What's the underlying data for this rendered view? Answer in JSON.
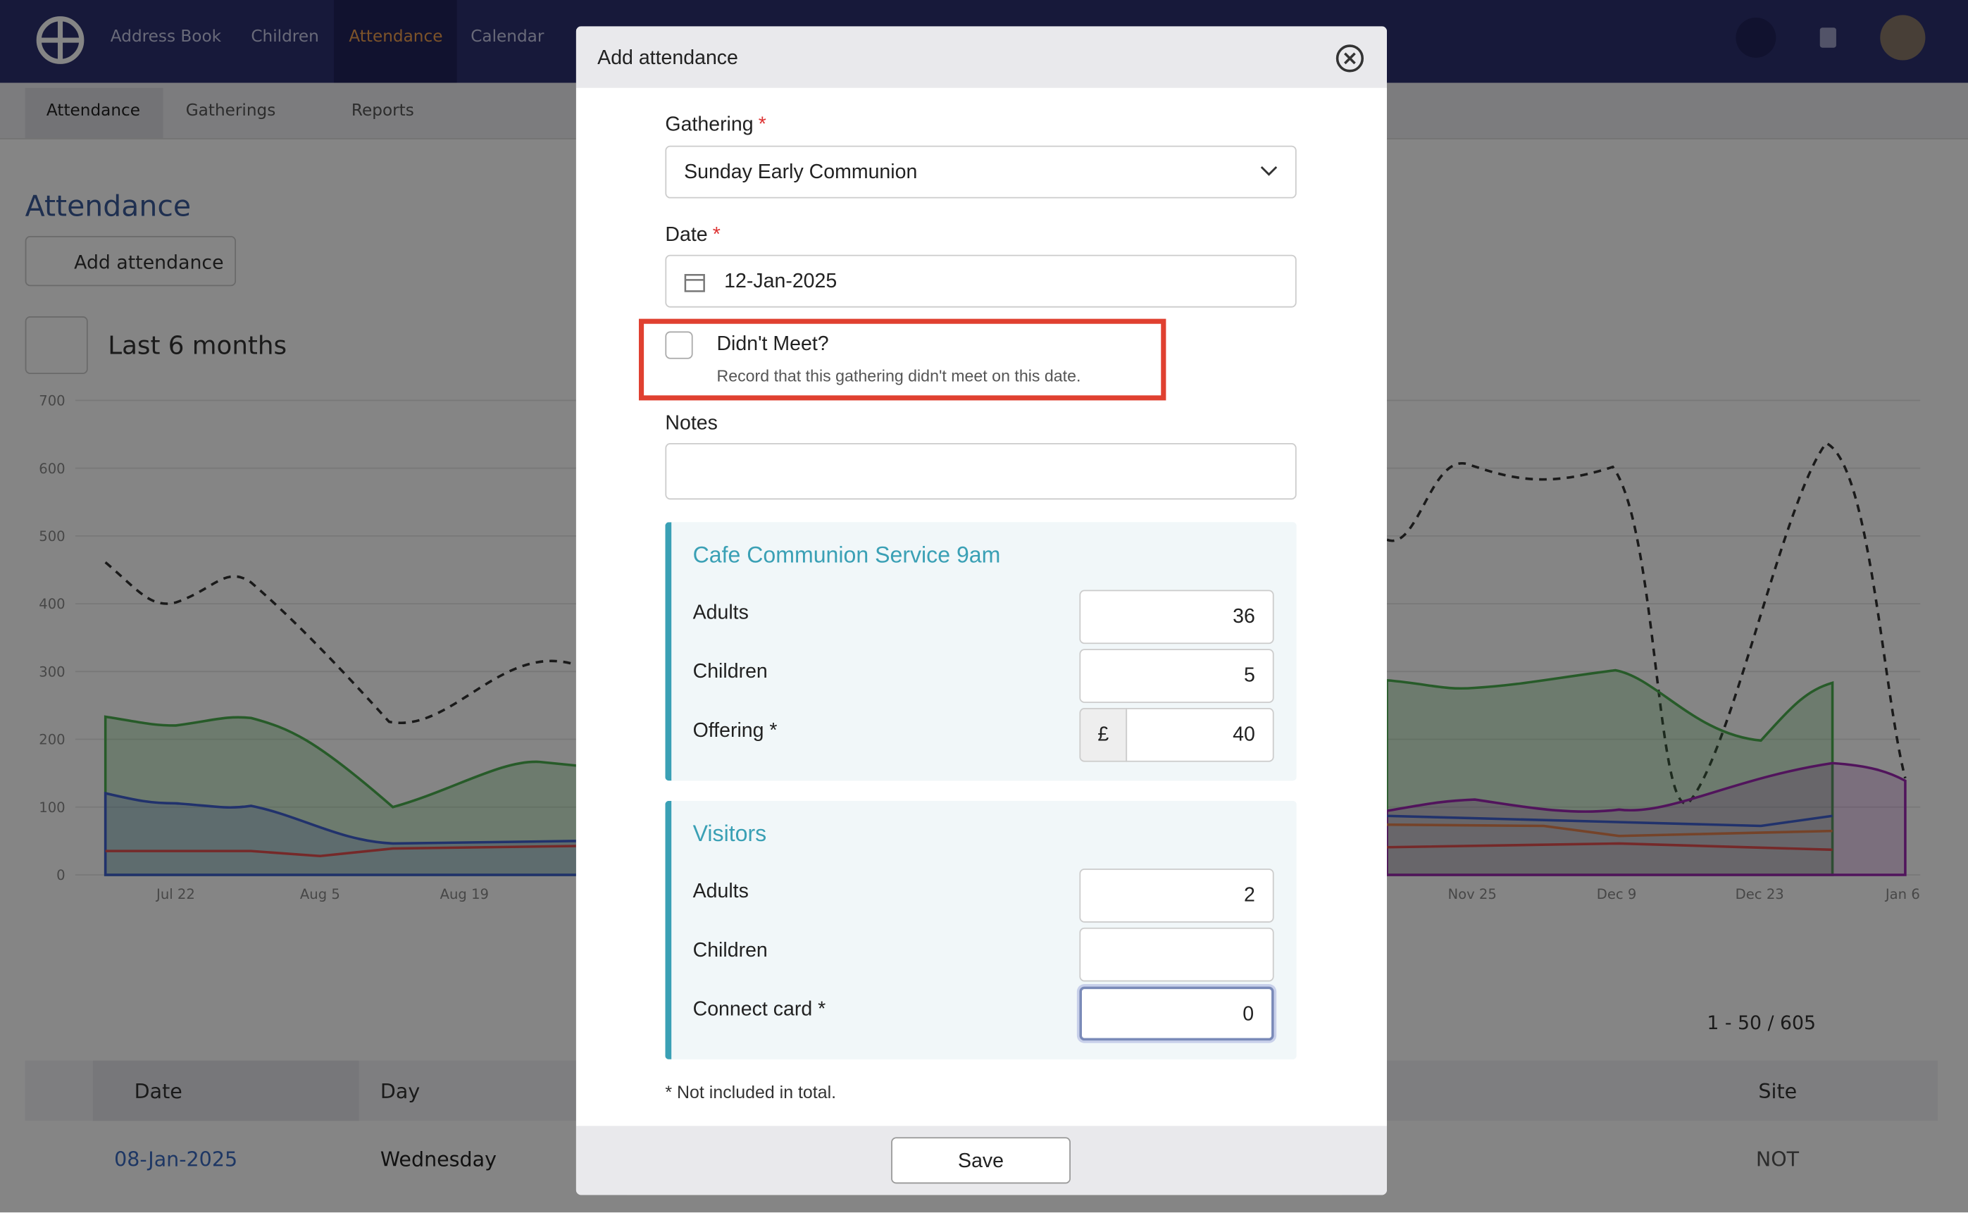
{
  "nav": {
    "items": [
      "Address Book",
      "Children",
      "Attendance",
      "Calendar"
    ]
  },
  "subnav": {
    "tabs": [
      "Attendance",
      "Gatherings",
      "Reports"
    ]
  },
  "page": {
    "title": "Attendance",
    "add_button": "Add attendance",
    "range": "Last 6 months"
  },
  "chart": {
    "yticks": [
      "700",
      "600",
      "500",
      "400",
      "300",
      "200",
      "100",
      "0"
    ],
    "xticks": [
      "Jul 22",
      "Aug 5",
      "Aug 19",
      "Nov 25",
      "Dec 9",
      "Dec 23",
      "Jan 6"
    ]
  },
  "table": {
    "pagination": "1 - 50 / 605",
    "headers": [
      "Date",
      "Day",
      "Site"
    ],
    "rows": [
      [
        "08-Jan-2025",
        "Wednesday",
        "NOT"
      ]
    ]
  },
  "modal": {
    "title": "Add attendance",
    "gathering": {
      "label": "Gathering",
      "required": "*",
      "value": "Sunday Early Communion"
    },
    "date": {
      "label": "Date",
      "required": "*",
      "value": "12-Jan-2025"
    },
    "didnt_meet": {
      "label": "Didn't Meet?",
      "help": "Record that this gathering didn't meet on this date."
    },
    "notes": {
      "label": "Notes"
    },
    "sections": [
      {
        "title": "Cafe Communion Service 9am",
        "fields": [
          {
            "label": "Adults",
            "value": 36
          },
          {
            "label": "Children",
            "value": 5
          },
          {
            "label": "Offering *",
            "prefix": "£",
            "value": 40
          }
        ]
      },
      {
        "title": "Visitors",
        "fields": [
          {
            "label": "Adults",
            "value": 2
          },
          {
            "label": "Children"
          },
          {
            "label": "Connect card *",
            "value": 0
          }
        ]
      }
    ],
    "footnote": "* Not included in total.",
    "save": "Save"
  }
}
